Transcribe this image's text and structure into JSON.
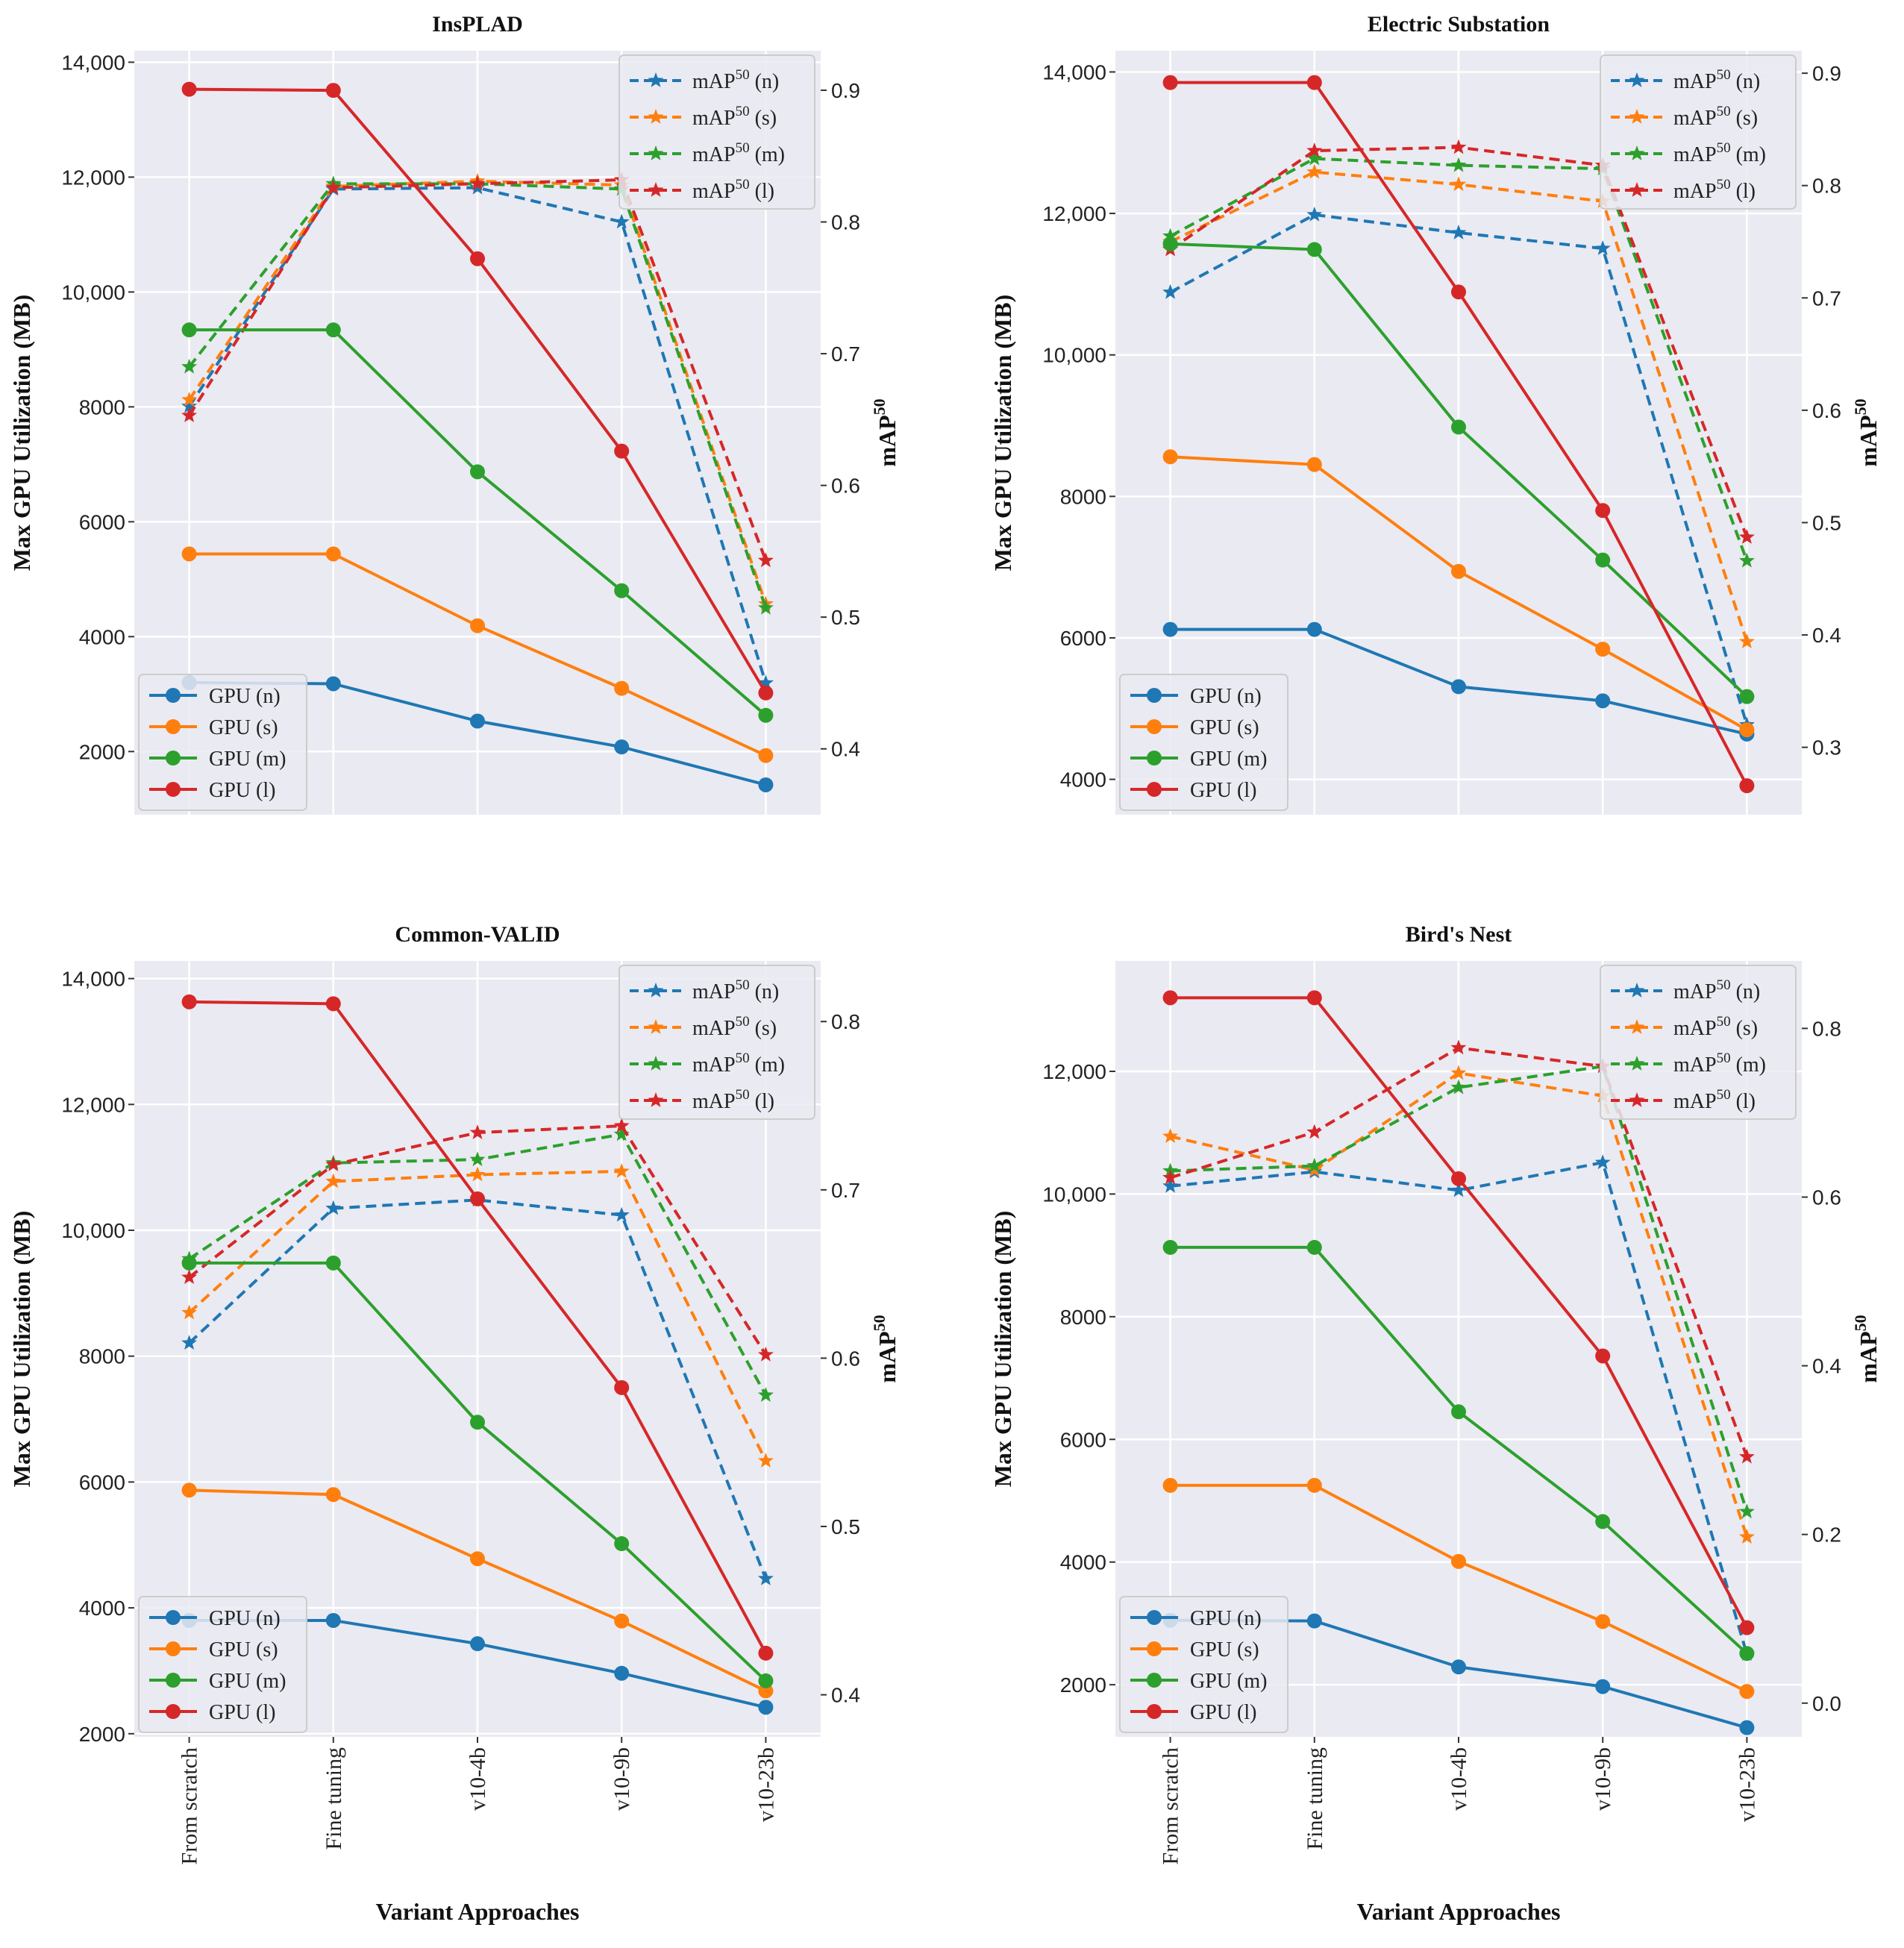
{
  "chart_data": [
    {
      "type": "line",
      "title": "InsPLAD",
      "categories": [
        "From scratch",
        "Fine tuning",
        "v10-4b",
        "v10-9b",
        "v10-23b"
      ],
      "xlabel": "Variant Approaches",
      "ylabel": "Max GPU Utilization (MB)",
      "y2label": "mAP",
      "y2label_sup": "50",
      "ylim": [
        900,
        14200
      ],
      "yticks": [
        2000,
        4000,
        6000,
        8000,
        10000,
        12000,
        14000
      ],
      "ytick_labels": [
        "2000",
        "4000",
        "6000",
        "8000",
        "10,000",
        "12,000",
        "14,000"
      ],
      "y2lim": [
        0.35,
        0.93
      ],
      "y2ticks": [
        0.4,
        0.5,
        0.6,
        0.7,
        0.8,
        0.9
      ],
      "y2tick_labels": [
        "0.4",
        "0.5",
        "0.6",
        "0.7",
        "0.8",
        "0.9"
      ],
      "gpu_series": [
        {
          "name": "GPU (n)",
          "values": [
            3200,
            3180,
            2530,
            2080,
            1420
          ]
        },
        {
          "name": "GPU (s)",
          "values": [
            5440,
            5440,
            4190,
            3100,
            1930
          ]
        },
        {
          "name": "GPU (m)",
          "values": [
            9340,
            9340,
            6870,
            4800,
            2630
          ]
        },
        {
          "name": "GPU (l)",
          "values": [
            13530,
            13510,
            10580,
            7230,
            3020
          ]
        }
      ],
      "map_series": [
        {
          "name": "mAP",
          "sup": "50",
          "suffix": " (n)",
          "values": [
            0.66,
            0.825,
            0.826,
            0.8,
            0.45
          ]
        },
        {
          "name": "mAP",
          "sup": "50",
          "suffix": " (s)",
          "values": [
            0.665,
            0.827,
            0.831,
            0.828,
            0.51
          ]
        },
        {
          "name": "mAP",
          "sup": "50",
          "suffix": " (m)",
          "values": [
            0.69,
            0.829,
            0.829,
            0.825,
            0.507
          ]
        },
        {
          "name": "mAP",
          "sup": "50",
          "suffix": " (l)",
          "values": [
            0.653,
            0.826,
            0.829,
            0.832,
            0.543
          ]
        }
      ],
      "show_xticklabels": false,
      "show_xlabel": false
    },
    {
      "type": "line",
      "title": "Electric Substation",
      "categories": [
        "From scratch",
        "Fine tuning",
        "v10-4b",
        "v10-9b",
        "v10-23b"
      ],
      "xlabel": "Variant Approaches",
      "ylabel": "Max GPU Utilization (MB)",
      "y2label": "mAP",
      "y2label_sup": "50",
      "ylim": [
        3500,
        14300
      ],
      "yticks": [
        4000,
        6000,
        8000,
        10000,
        12000,
        14000
      ],
      "ytick_labels": [
        "4000",
        "6000",
        "8000",
        "10,000",
        "12,000",
        "14,000"
      ],
      "y2lim": [
        0.24,
        0.92
      ],
      "y2ticks": [
        0.3,
        0.4,
        0.5,
        0.6,
        0.7,
        0.8,
        0.9
      ],
      "y2tick_labels": [
        "0.3",
        "0.4",
        "0.5",
        "0.6",
        "0.7",
        "0.8",
        "0.9"
      ],
      "gpu_series": [
        {
          "name": "GPU (n)",
          "values": [
            6120,
            6120,
            5310,
            5110,
            4640
          ]
        },
        {
          "name": "GPU (s)",
          "values": [
            8560,
            8450,
            6940,
            5840,
            4700
          ]
        },
        {
          "name": "GPU (m)",
          "values": [
            11570,
            11490,
            8980,
            7100,
            5170
          ]
        },
        {
          "name": "GPU (l)",
          "values": [
            13850,
            13850,
            10890,
            7800,
            3910
          ]
        }
      ],
      "map_series": [
        {
          "name": "mAP",
          "sup": "50",
          "suffix": " (n)",
          "values": [
            0.705,
            0.774,
            0.758,
            0.744,
            0.32
          ]
        },
        {
          "name": "mAP",
          "sup": "50",
          "suffix": " (s)",
          "values": [
            0.75,
            0.812,
            0.801,
            0.786,
            0.394
          ]
        },
        {
          "name": "mAP",
          "sup": "50",
          "suffix": " (m)",
          "values": [
            0.755,
            0.824,
            0.818,
            0.815,
            0.466
          ]
        },
        {
          "name": "mAP",
          "sup": "50",
          "suffix": " (l)",
          "values": [
            0.743,
            0.831,
            0.834,
            0.818,
            0.487
          ]
        }
      ],
      "show_xticklabels": false,
      "show_xlabel": false
    },
    {
      "type": "line",
      "title": "Common-VALID",
      "categories": [
        "From scratch",
        "Fine tuning",
        "v10-4b",
        "v10-9b",
        "v10-23b"
      ],
      "xlabel": "Variant Approaches",
      "ylabel": "Max GPU Utilization (MB)",
      "y2label": "mAP",
      "y2label_sup": "50",
      "ylim": [
        1950,
        14280
      ],
      "yticks": [
        2000,
        4000,
        6000,
        8000,
        10000,
        12000,
        14000
      ],
      "ytick_labels": [
        "2000",
        "4000",
        "6000",
        "8000",
        "10,000",
        "12,000",
        "14,000"
      ],
      "y2lim": [
        0.375,
        0.836
      ],
      "y2ticks": [
        0.4,
        0.5,
        0.6,
        0.7,
        0.8
      ],
      "y2tick_labels": [
        "0.4",
        "0.5",
        "0.6",
        "0.7",
        "0.8"
      ],
      "gpu_series": [
        {
          "name": "GPU (n)",
          "values": [
            3800,
            3800,
            3430,
            2960,
            2420
          ]
        },
        {
          "name": "GPU (s)",
          "values": [
            5870,
            5800,
            4780,
            3790,
            2680
          ]
        },
        {
          "name": "GPU (m)",
          "values": [
            9480,
            9480,
            6950,
            5020,
            2840
          ]
        },
        {
          "name": "GPU (l)",
          "values": [
            13630,
            13600,
            10500,
            7500,
            3280
          ]
        }
      ],
      "map_series": [
        {
          "name": "mAP",
          "sup": "50",
          "suffix": " (n)",
          "values": [
            0.609,
            0.689,
            0.694,
            0.685,
            0.469
          ]
        },
        {
          "name": "mAP",
          "sup": "50",
          "suffix": " (s)",
          "values": [
            0.627,
            0.705,
            0.709,
            0.711,
            0.539
          ]
        },
        {
          "name": "mAP",
          "sup": "50",
          "suffix": " (m)",
          "values": [
            0.659,
            0.716,
            0.718,
            0.733,
            0.578
          ]
        },
        {
          "name": "mAP",
          "sup": "50",
          "suffix": " (l)",
          "values": [
            0.648,
            0.715,
            0.734,
            0.738,
            0.602
          ]
        }
      ],
      "show_xticklabels": true,
      "show_xlabel": true
    },
    {
      "type": "line",
      "title": "Bird's Nest",
      "categories": [
        "From scratch",
        "Fine tuning",
        "v10-4b",
        "v10-9b",
        "v10-23b"
      ],
      "xlabel": "Variant Approaches",
      "ylabel": "Max GPU Utilization (MB)",
      "y2label": "mAP",
      "y2label_sup": "50",
      "ylim": [
        1150,
        13800
      ],
      "yticks": [
        2000,
        4000,
        6000,
        8000,
        10000,
        12000
      ],
      "ytick_labels": [
        "2000",
        "4000",
        "6000",
        "8000",
        "10,000",
        "12,000"
      ],
      "y2lim": [
        -0.04,
        0.88
      ],
      "y2ticks": [
        0.0,
        0.2,
        0.4,
        0.6,
        0.8
      ],
      "y2tick_labels": [
        "0.0",
        "0.2",
        "0.4",
        "0.6",
        "0.8"
      ],
      "gpu_series": [
        {
          "name": "GPU (n)",
          "values": [
            3050,
            3040,
            2290,
            1970,
            1300
          ]
        },
        {
          "name": "GPU (s)",
          "values": [
            5250,
            5250,
            4010,
            3030,
            1890
          ]
        },
        {
          "name": "GPU (m)",
          "values": [
            9130,
            9130,
            6450,
            4660,
            2510
          ]
        },
        {
          "name": "GPU (l)",
          "values": [
            13200,
            13200,
            10250,
            7360,
            2930
          ]
        }
      ],
      "map_series": [
        {
          "name": "mAP",
          "sup": "50",
          "suffix": " (n)",
          "values": [
            0.613,
            0.63,
            0.608,
            0.641,
            0.058
          ]
        },
        {
          "name": "mAP",
          "sup": "50",
          "suffix": " (s)",
          "values": [
            0.672,
            0.632,
            0.747,
            0.72,
            0.197
          ]
        },
        {
          "name": "mAP",
          "sup": "50",
          "suffix": " (m)",
          "values": [
            0.631,
            0.637,
            0.73,
            0.755,
            0.227
          ]
        },
        {
          "name": "mAP",
          "sup": "50",
          "suffix": " (l)",
          "values": [
            0.623,
            0.677,
            0.777,
            0.755,
            0.292
          ]
        }
      ],
      "show_xticklabels": true,
      "show_xlabel": true
    }
  ],
  "colors": [
    "#1f77b4",
    "#ff7f0e",
    "#2ca02c",
    "#d62728"
  ],
  "plot_background": "#eaeaf2",
  "grid_color": "#ffffff"
}
